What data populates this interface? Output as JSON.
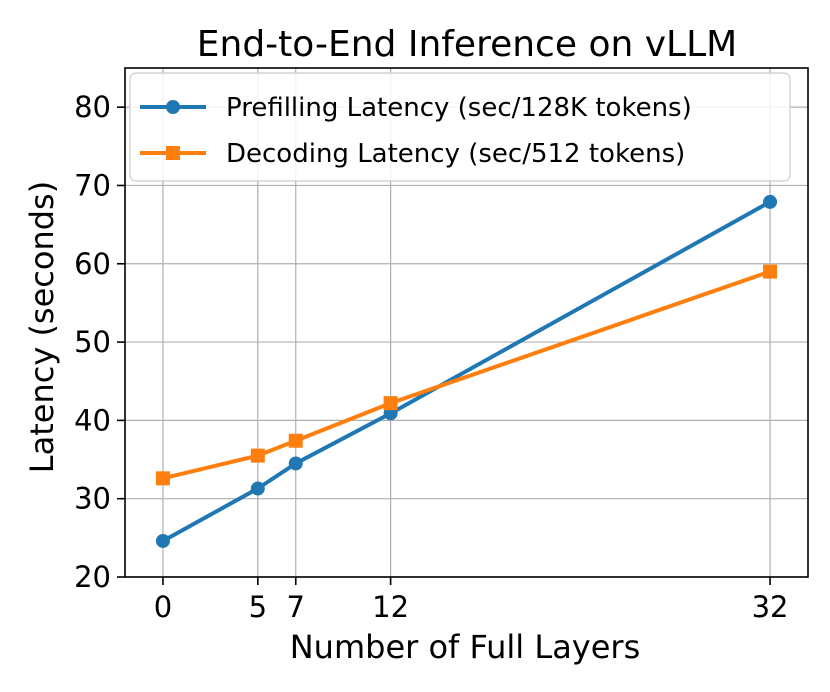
{
  "chart_data": {
    "type": "line",
    "title": "End-to-End Inference on vLLM",
    "xlabel": "Number of Full Layers",
    "ylabel": "Latency (seconds)",
    "x": [
      0,
      5,
      7,
      12,
      32
    ],
    "xticks": [
      "0",
      "5",
      "7",
      "12",
      "32"
    ],
    "yticks": [
      "20",
      "30",
      "40",
      "50",
      "60",
      "70",
      "80"
    ],
    "xlim": [
      -2,
      34
    ],
    "ylim": [
      20,
      85
    ],
    "grid": true,
    "legend_position": "top-left",
    "series": [
      {
        "name": "Prefilling Latency (sec/128K tokens)",
        "marker": "circle",
        "color": "#1f77b4",
        "values": [
          24.6,
          31.3,
          34.5,
          40.9,
          67.9
        ]
      },
      {
        "name": "Decoding Latency (sec/512 tokens)",
        "marker": "square",
        "color": "#ff7f0e",
        "values": [
          32.6,
          35.5,
          37.4,
          42.2,
          59.0
        ]
      }
    ]
  }
}
